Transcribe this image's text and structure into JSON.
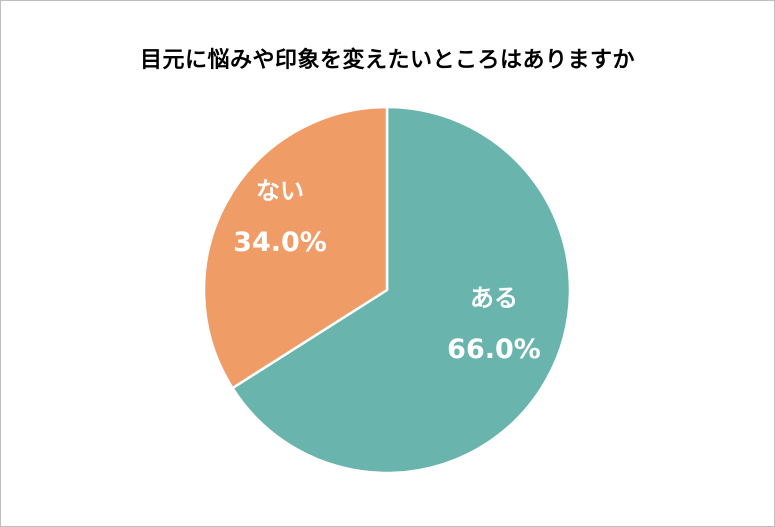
{
  "chart_data": {
    "type": "pie",
    "title": "目元に悩みや印象を変えたいところはありますか",
    "slices": [
      {
        "label": "ある",
        "value": 66.0,
        "value_label": "66.0%",
        "color": "#69b5ad"
      },
      {
        "label": "ない",
        "value": 34.0,
        "value_label": "34.0%",
        "color": "#f09c66"
      }
    ],
    "start_angle": "12 o'clock",
    "direction": "clockwise",
    "legend": "none",
    "slice_border_color": "#ffffff"
  }
}
